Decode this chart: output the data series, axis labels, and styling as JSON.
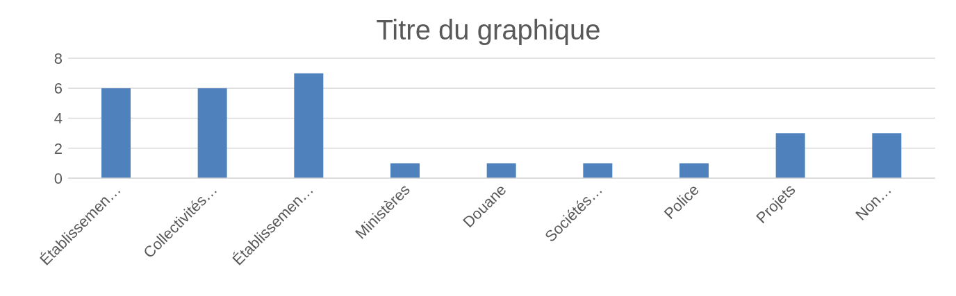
{
  "chart_data": {
    "type": "bar",
    "title": "Titre du graphique",
    "categories": [
      "Établissemen…",
      "Collectivités…",
      "Établissemen…",
      "Ministères",
      "Douane",
      "Sociétés…",
      "Police",
      "Projets",
      "Non…"
    ],
    "values": [
      6,
      6,
      7,
      1,
      1,
      1,
      1,
      3,
      3
    ],
    "color": "#4f81bd",
    "ylim": [
      0,
      8
    ],
    "yticks": [
      0,
      2,
      4,
      6,
      8
    ],
    "grid": "y"
  }
}
